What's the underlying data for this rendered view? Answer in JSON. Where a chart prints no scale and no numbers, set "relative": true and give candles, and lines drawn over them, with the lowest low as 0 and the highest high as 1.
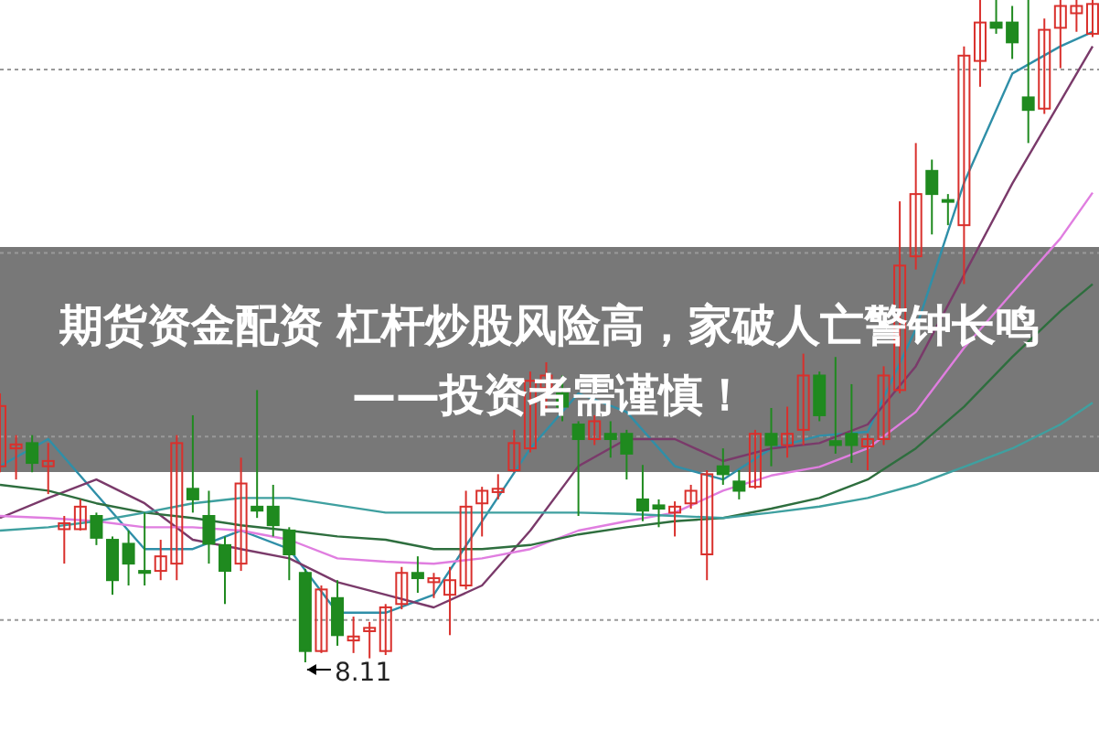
{
  "chart_data": {
    "type": "candlestick",
    "title": "期货资金配资 杠杆炒股风险高，家破人亡警钟长鸣——投资者需谨慎！",
    "relative": true,
    "grid": "y",
    "categories": [
      null,
      null,
      null,
      null,
      null,
      null,
      null,
      null,
      null,
      null,
      null,
      null,
      null,
      null,
      null,
      null,
      null,
      null,
      null,
      null,
      null,
      null,
      null,
      null,
      null,
      null,
      null,
      null,
      null,
      null,
      null,
      null,
      null,
      null,
      null,
      null,
      null,
      null,
      null,
      null,
      null,
      null,
      null,
      null,
      null,
      null,
      null,
      null,
      null,
      null,
      null,
      null,
      null,
      null,
      null,
      null,
      null,
      null,
      null,
      null,
      null,
      null,
      null,
      null,
      null,
      null,
      null,
      null,
      null
    ],
    "ohlc": [
      [
        0.296,
        0.406,
        0.287,
        0.387
      ],
      [
        0.323,
        0.343,
        0.276,
        0.329
      ],
      [
        0.331,
        0.343,
        0.287,
        0.301
      ],
      [
        0.296,
        0.331,
        0.254,
        0.304
      ],
      [
        0.201,
        0.221,
        0.149,
        0.21
      ],
      [
        0.201,
        0.246,
        0.199,
        0.235
      ],
      [
        0.221,
        0.226,
        0.177,
        0.188
      ],
      [
        0.185,
        0.19,
        0.102,
        0.124
      ],
      [
        0.179,
        0.199,
        0.116,
        0.149
      ],
      [
        0.138,
        0.226,
        0.116,
        0.135
      ],
      [
        0.138,
        0.185,
        0.124,
        0.16
      ],
      [
        0.149,
        0.343,
        0.124,
        0.331
      ],
      [
        0.262,
        0.373,
        0.226,
        0.246
      ],
      [
        0.221,
        0.259,
        0.149,
        0.179
      ],
      [
        0.177,
        0.19,
        0.088,
        0.138
      ],
      [
        0.149,
        0.309,
        0.138,
        0.27
      ],
      [
        0.235,
        0.411,
        0.218,
        0.229
      ],
      [
        0.235,
        0.268,
        0.19,
        0.207
      ],
      [
        0.199,
        0.204,
        0.124,
        0.163
      ],
      [
        0.135,
        0.141,
        0,
        0.017
      ],
      [
        0.017,
        0.116,
        0.014,
        0.11
      ],
      [
        0.097,
        0.124,
        0.025,
        0.041
      ],
      [
        0.033,
        0.069,
        0.014,
        0.039
      ],
      [
        0.047,
        0.061,
        0.006,
        0.052
      ],
      [
        0.017,
        0.088,
        0.011,
        0.083
      ],
      [
        0.088,
        0.144,
        0.08,
        0.135
      ],
      [
        0.135,
        0.16,
        0.105,
        0.127
      ],
      [
        0.121,
        0.135,
        0.097,
        0.127
      ],
      [
        0.102,
        0.144,
        0.041,
        0.124
      ],
      [
        0.116,
        0.259,
        0.11,
        0.235
      ],
      [
        0.24,
        0.265,
        0.19,
        0.259
      ],
      [
        0.257,
        0.284,
        0.246,
        0.262
      ],
      [
        0.29,
        0.351,
        0.287,
        0.331
      ],
      [
        0.323,
        0.439,
        0.317,
        0.425
      ],
      [
        0.414,
        0.453,
        0.378,
        0.433
      ],
      [
        0.406,
        0.433,
        0.364,
        0.386
      ],
      [
        0.359,
        0.364,
        0.221,
        0.337
      ],
      [
        0.337,
        0.373,
        0.328,
        0.364
      ],
      [
        0.345,
        0.364,
        0.309,
        0.337
      ],
      [
        0.345,
        0.351,
        0.276,
        0.315
      ],
      [
        0.246,
        0.298,
        0.213,
        0.229
      ],
      [
        0.237,
        0.246,
        0.204,
        0.232
      ],
      [
        0.226,
        0.243,
        0.19,
        0.235
      ],
      [
        0.24,
        0.268,
        0.232,
        0.259
      ],
      [
        0.163,
        0.29,
        0.124,
        0.284
      ],
      [
        0.296,
        0.323,
        0.268,
        0.284
      ],
      [
        0.273,
        0.29,
        0.246,
        0.259
      ],
      [
        0.265,
        0.351,
        0.262,
        0.345
      ],
      [
        0.345,
        0.384,
        0.296,
        0.328
      ],
      [
        0.328,
        0.386,
        0.309,
        0.345
      ],
      [
        0.351,
        0.466,
        0.328,
        0.433
      ],
      [
        0.433,
        0.439,
        0.364,
        0.373
      ],
      [
        0.334,
        0.461,
        0.315,
        0.328
      ],
      [
        0.345,
        0.42,
        0.301,
        0.328
      ],
      [
        0.326,
        0.345,
        0.29,
        0.337
      ],
      [
        0.337,
        0.447,
        0.328,
        0.433
      ],
      [
        0.411,
        0.696,
        0.406,
        0.599
      ],
      [
        0.613,
        0.784,
        0.593,
        0.707
      ],
      [
        0.742,
        0.759,
        0.646,
        0.707
      ],
      [
        0.698,
        0.707,
        0.66,
        0.696
      ],
      [
        0.66,
        0.93,
        0.571,
        0.916
      ],
      [
        0.908,
        1,
        0.869,
        0.966
      ],
      [
        0.966,
        1,
        0.949,
        0.958
      ],
      [
        0.966,
        0.991,
        0.911,
        0.936
      ],
      [
        0.853,
        1,
        0.784,
        0.834
      ],
      [
        0.836,
        0.972,
        0.828,
        0.955
      ],
      [
        0.958,
        1,
        0.897,
        0.991
      ],
      [
        0.98,
        1,
        0.952,
        0.991
      ],
      [
        0.949,
        1,
        0.944,
        0.994
      ]
    ],
    "colors": [
      "#d9302c",
      "#d9302c",
      "#1f8a1f",
      "#d9302c",
      "#d9302c",
      "#d9302c",
      "#1f8a1f",
      "#1f8a1f",
      "#1f8a1f",
      "#1f8a1f",
      "#d9302c",
      "#d9302c",
      "#1f8a1f",
      "#1f8a1f",
      "#1f8a1f",
      "#d9302c",
      "#1f8a1f",
      "#1f8a1f",
      "#1f8a1f",
      "#1f8a1f",
      "#d9302c",
      "#1f8a1f",
      "#d9302c",
      "#d9302c",
      "#d9302c",
      "#d9302c",
      "#1f8a1f",
      "#d9302c",
      "#d9302c",
      "#d9302c",
      "#d9302c",
      "#d9302c",
      "#d9302c",
      "#d9302c",
      "#d9302c",
      "#1f8a1f",
      "#1f8a1f",
      "#d9302c",
      "#1f8a1f",
      "#1f8a1f",
      "#1f8a1f",
      "#1f8a1f",
      "#d9302c",
      "#d9302c",
      "#d9302c",
      "#1f8a1f",
      "#1f8a1f",
      "#d9302c",
      "#1f8a1f",
      "#d9302c",
      "#d9302c",
      "#1f8a1f",
      "#1f8a1f",
      "#1f8a1f",
      "#d9302c",
      "#d9302c",
      "#d9302c",
      "#d9302c",
      "#1f8a1f",
      "#1f8a1f",
      "#d9302c",
      "#d9302c",
      "#1f8a1f",
      "#1f8a1f",
      "#1f8a1f",
      "#d9302c",
      "#d9302c",
      "#d9302c",
      "#d9302c"
    ],
    "series": [
      {
        "type": "line",
        "color": "#2f8fa8",
        "values": [
          0.296,
          null,
          null,
          0.337,
          null,
          null,
          0.254,
          null,
          null,
          0.171,
          null,
          null,
          0.171,
          null,
          null,
          0.199,
          null,
          null,
          0.171,
          null,
          null,
          0.075,
          null,
          null,
          0.075,
          null,
          null,
          0.102,
          null,
          null,
          0.213,
          null,
          null,
          0.323,
          null,
          null,
          0.406,
          null,
          null,
          0.378,
          null,
          null,
          0.296,
          null,
          null,
          0.276,
          null,
          null,
          0.323,
          null,
          null,
          0.342,
          null,
          null,
          0.348,
          null,
          null,
          0.503,
          null,
          null,
          0.724,
          null,
          null,
          0.889,
          null,
          null,
          0.93,
          null,
          0.952
        ]
      },
      {
        "type": "line",
        "color": "#7a3a6a",
        "values": [
          0.218,
          null,
          null,
          0.248,
          null,
          null,
          0.276,
          null,
          null,
          0.24,
          null,
          null,
          0.185,
          null,
          null,
          0.171,
          null,
          null,
          0.157,
          null,
          null,
          0.121,
          null,
          null,
          0.102,
          null,
          null,
          0.083,
          null,
          null,
          0.116,
          null,
          null,
          0.199,
          null,
          null,
          0.296,
          null,
          null,
          0.337,
          null,
          null,
          0.337,
          null,
          null,
          0.304,
          null,
          null,
          0.323,
          null,
          null,
          0.331,
          null,
          null,
          0.359,
          null,
          null,
          0.447,
          null,
          null,
          0.585,
          null,
          null,
          0.723,
          null,
          null,
          0.847,
          null,
          0.93
        ]
      },
      {
        "type": "line",
        "color": "#e07ee0",
        "values": [
          0.221,
          null,
          null,
          0.218,
          null,
          null,
          0.213,
          null,
          null,
          0.204,
          null,
          null,
          0.204,
          null,
          null,
          0.199,
          null,
          null,
          0.185,
          null,
          null,
          0.157,
          null,
          null,
          0.152,
          null,
          null,
          0.149,
          null,
          null,
          0.157,
          null,
          null,
          0.171,
          null,
          null,
          0.199,
          null,
          null,
          0.213,
          null,
          null,
          0.226,
          null,
          null,
          0.259,
          null,
          null,
          0.282,
          null,
          null,
          0.295,
          null,
          null,
          0.323,
          null,
          null,
          0.378,
          null,
          null,
          0.475,
          null,
          null,
          0.558,
          null,
          null,
          0.64,
          null,
          0.709
        ]
      },
      {
        "type": "line",
        "color": "#2e6e3e",
        "values": [
          0.268,
          null,
          null,
          0.259,
          null,
          null,
          0.24,
          null,
          null,
          0.226,
          null,
          null,
          0.218,
          null,
          null,
          0.207,
          null,
          null,
          0.199,
          null,
          null,
          0.19,
          null,
          null,
          0.185,
          null,
          null,
          0.171,
          null,
          null,
          0.171,
          null,
          null,
          0.177,
          null,
          null,
          0.193,
          null,
          null,
          0.204,
          null,
          null,
          0.213,
          null,
          null,
          0.218,
          null,
          null,
          0.232,
          null,
          null,
          0.248,
          null,
          null,
          0.276,
          null,
          null,
          0.323,
          null,
          null,
          0.386,
          null,
          null,
          0.461,
          null,
          null,
          0.53,
          null,
          0.571
        ]
      },
      {
        "type": "line",
        "color": "#3fa0a0",
        "values": [
          0.199,
          null,
          null,
          0.204,
          null,
          null,
          0.213,
          null,
          null,
          0.226,
          null,
          null,
          0.24,
          null,
          null,
          0.248,
          null,
          null,
          0.248,
          null,
          null,
          0.237,
          null,
          null,
          0.226,
          null,
          null,
          0.226,
          null,
          null,
          0.226,
          null,
          null,
          0.226,
          null,
          null,
          0.226,
          null,
          null,
          0.224,
          null,
          null,
          0.221,
          null,
          null,
          0.218,
          null,
          null,
          0.226,
          null,
          null,
          0.235,
          null,
          null,
          0.248,
          null,
          null,
          0.268,
          null,
          null,
          0.295,
          null,
          null,
          0.323,
          null,
          null,
          0.359,
          null,
          0.392
        ]
      }
    ],
    "annotations": [
      {
        "text": "8.11",
        "y": 0
      }
    ]
  }
}
